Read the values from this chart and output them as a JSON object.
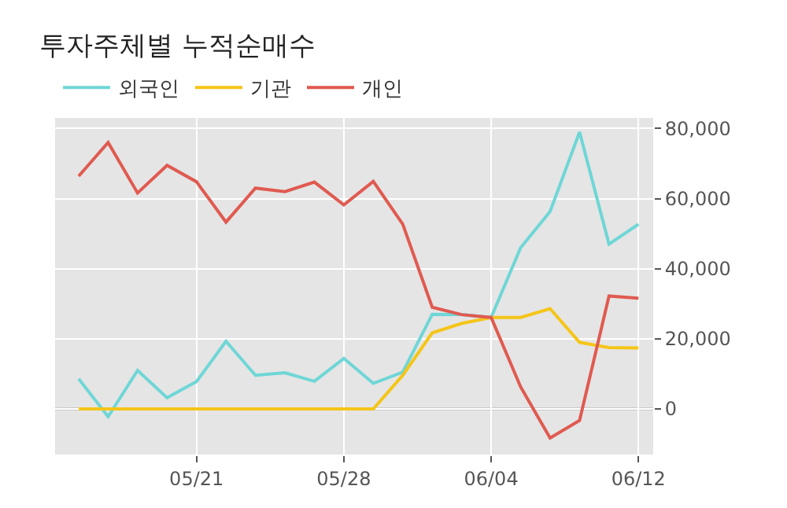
{
  "chart_data": {
    "type": "line",
    "title": "투자주체별 누적순매수",
    "categories": [
      null,
      null,
      null,
      null,
      "05/21",
      null,
      null,
      null,
      null,
      "05/28",
      null,
      null,
      null,
      null,
      "06/04",
      null,
      null,
      null,
      null,
      "06/12"
    ],
    "series": [
      {
        "name": "외국인",
        "color": "#6fd6d6",
        "values": [
          8600,
          -2200,
          11000,
          3200,
          7800,
          19300,
          9600,
          10300,
          7900,
          14400,
          7300,
          10500,
          27000,
          26900,
          26100,
          46000,
          56300,
          79000,
          47000,
          52700
        ]
      },
      {
        "name": "기관",
        "color": "#f5c518",
        "values": [
          0,
          0,
          0,
          0,
          0,
          0,
          0,
          0,
          0,
          0,
          0,
          9600,
          21700,
          24400,
          26100,
          26100,
          28600,
          19000,
          17500,
          17400
        ]
      },
      {
        "name": "개인",
        "color": "#e05a50",
        "values": [
          66400,
          76000,
          61600,
          69500,
          64800,
          53300,
          63000,
          62000,
          64700,
          58200,
          64900,
          52700,
          29000,
          26900,
          26100,
          6300,
          -8300,
          -3300,
          32200,
          31600
        ]
      }
    ],
    "ylim": [
      -13000,
      83000
    ],
    "yticks": [
      {
        "value": 0,
        "label": "0"
      },
      {
        "value": 20000,
        "label": "20,000"
      },
      {
        "value": 40000,
        "label": "40,000"
      },
      {
        "value": 60000,
        "label": "60,000"
      },
      {
        "value": 80000,
        "label": "80,000"
      }
    ],
    "ref_lines": [
      {
        "axis": "y",
        "value": 0,
        "color": "#777777"
      }
    ],
    "grid": true,
    "legend": "top left",
    "marker": "none",
    "line_style": "solid"
  }
}
